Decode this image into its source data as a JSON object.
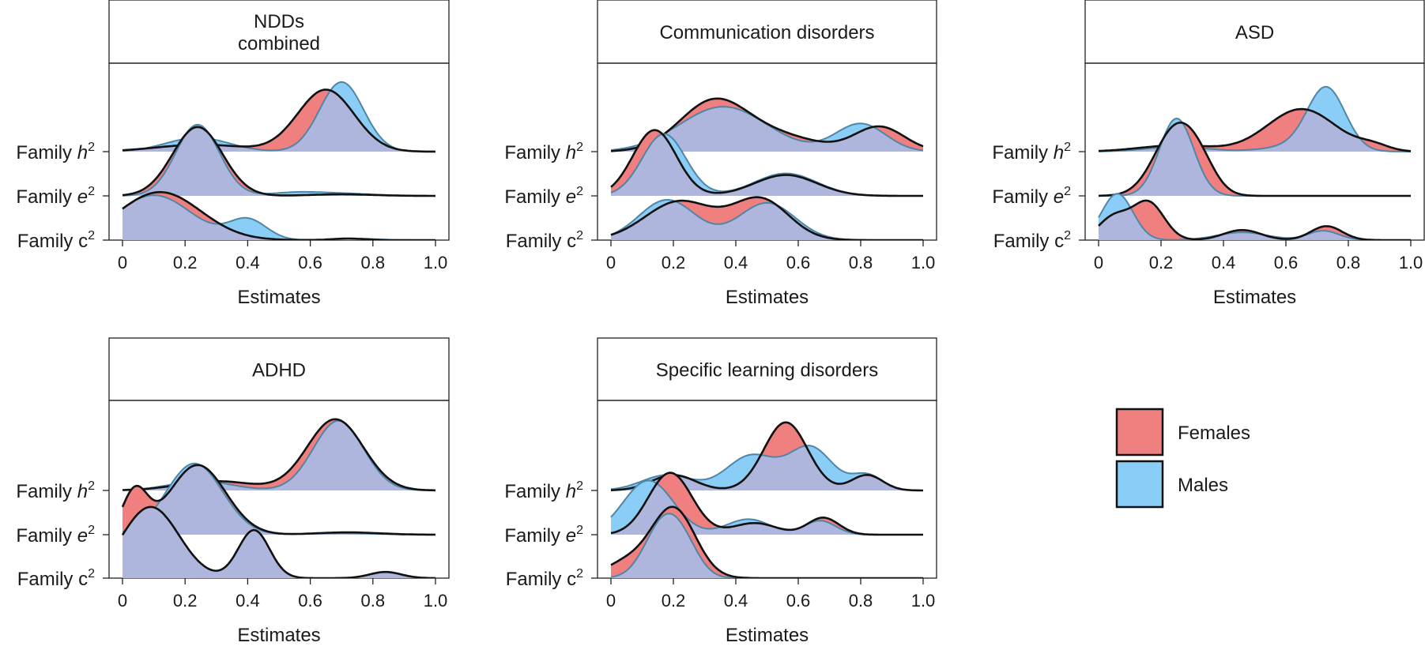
{
  "figure": {
    "row_labels": {
      "h2": {
        "prefix": "Family ",
        "symbol": "h",
        "sup": "2"
      },
      "e2": {
        "prefix": "Family ",
        "symbol": "e",
        "sup": "2"
      },
      "c2": {
        "prefix": "Family ",
        "symbol": "c",
        "sup": "2"
      }
    },
    "colors": {
      "females": "#f07f80",
      "males": "#8acdf7",
      "overlap": "#aeb6dd",
      "outline": "#111111",
      "male_line": "#4f86a6"
    }
  },
  "legend": {
    "items": [
      {
        "label": "Females",
        "color": "#f07f80"
      },
      {
        "label": "Males",
        "color": "#8acdf7"
      }
    ]
  },
  "chart_data": [
    {
      "type": "ridgeline-density",
      "title": [
        "NDDs",
        "combined"
      ],
      "xlabel": "Estimates",
      "xlim": [
        0,
        1
      ],
      "xticks": [
        0,
        0.2,
        0.4,
        0.6,
        0.8,
        1.0
      ],
      "xtick_labels": [
        "0",
        "0.2",
        "0.4",
        "0.6",
        "0.8",
        "1.0"
      ],
      "rows": [
        "Family h2",
        "Family e2",
        "Family c2"
      ],
      "series": [
        {
          "row": "h2",
          "name": "Females",
          "peaks": [
            [
              0.25,
              0.14,
              0.09
            ],
            [
              0.65,
              0.09,
              0.8
            ]
          ]
        },
        {
          "row": "h2",
          "name": "Males",
          "peaks": [
            [
              0.24,
              0.1,
              0.18
            ],
            [
              0.7,
              0.07,
              0.9
            ]
          ]
        },
        {
          "row": "e2",
          "name": "Females",
          "peaks": [
            [
              0.24,
              0.08,
              0.89
            ],
            [
              0.7,
              0.1,
              0.02
            ]
          ]
        },
        {
          "row": "e2",
          "name": "Males",
          "peaks": [
            [
              0.24,
              0.07,
              0.92
            ],
            [
              0.55,
              0.08,
              0.04
            ],
            [
              0.7,
              0.1,
              0.03
            ]
          ]
        },
        {
          "row": "c2",
          "name": "Females",
          "peaks": [
            [
              0.12,
              0.13,
              0.62
            ],
            [
              0.72,
              0.05,
              0.02
            ]
          ]
        },
        {
          "row": "c2",
          "name": "Males",
          "peaks": [
            [
              0.1,
              0.12,
              0.58
            ],
            [
              0.4,
              0.06,
              0.26
            ],
            [
              0.75,
              0.06,
              0.02
            ]
          ]
        }
      ]
    },
    {
      "type": "ridgeline-density",
      "title": [
        "Communication disorders"
      ],
      "xlabel": "Estimates",
      "xlim": [
        0,
        1
      ],
      "xticks": [
        0,
        0.2,
        0.4,
        0.6,
        0.8,
        1.0
      ],
      "xtick_labels": [
        "0",
        "0.2",
        "0.4",
        "0.6",
        "0.8",
        "1.0"
      ],
      "rows": [
        "Family h2",
        "Family e2",
        "Family c2"
      ],
      "series": [
        {
          "row": "h2",
          "name": "Females",
          "peaks": [
            [
              0.33,
              0.11,
              0.65
            ],
            [
              0.55,
              0.12,
              0.18
            ],
            [
              0.86,
              0.08,
              0.32
            ]
          ]
        },
        {
          "row": "h2",
          "name": "Males",
          "peaks": [
            [
              0.36,
              0.14,
              0.58
            ],
            [
              0.8,
              0.08,
              0.36
            ]
          ]
        },
        {
          "row": "e2",
          "name": "Females",
          "peaks": [
            [
              0.14,
              0.07,
              0.85
            ],
            [
              0.56,
              0.1,
              0.27
            ]
          ]
        },
        {
          "row": "e2",
          "name": "Males",
          "peaks": [
            [
              0.17,
              0.07,
              0.8
            ],
            [
              0.56,
              0.1,
              0.29
            ]
          ]
        },
        {
          "row": "c2",
          "name": "Females",
          "peaks": [
            [
              0.22,
              0.11,
              0.5
            ],
            [
              0.48,
              0.09,
              0.52
            ]
          ]
        },
        {
          "row": "c2",
          "name": "Males",
          "peaks": [
            [
              0.18,
              0.09,
              0.52
            ],
            [
              0.5,
              0.09,
              0.48
            ]
          ]
        }
      ]
    },
    {
      "type": "ridgeline-density",
      "title": [
        "ASD"
      ],
      "xlabel": "Estimates",
      "xlim": [
        0,
        1
      ],
      "xticks": [
        0,
        0.2,
        0.4,
        0.6,
        0.8,
        1.0
      ],
      "xtick_labels": [
        "0",
        "0.2",
        "0.4",
        "0.6",
        "0.8",
        "1.0"
      ],
      "rows": [
        "Family h2",
        "Family e2",
        "Family c2"
      ],
      "series": [
        {
          "row": "h2",
          "name": "Females",
          "peaks": [
            [
              0.25,
              0.12,
              0.08
            ],
            [
              0.65,
              0.11,
              0.55
            ],
            [
              0.88,
              0.05,
              0.07
            ]
          ]
        },
        {
          "row": "h2",
          "name": "Males",
          "peaks": [
            [
              0.25,
              0.1,
              0.06
            ],
            [
              0.73,
              0.06,
              0.78
            ],
            [
              0.65,
              0.1,
              0.08
            ]
          ]
        },
        {
          "row": "e2",
          "name": "Females",
          "peaks": [
            [
              0.25,
              0.07,
              0.88
            ],
            [
              0.33,
              0.05,
              0.2
            ]
          ]
        },
        {
          "row": "e2",
          "name": "Males",
          "peaks": [
            [
              0.25,
              0.055,
              1.0
            ]
          ]
        },
        {
          "row": "c2",
          "name": "Females",
          "peaks": [
            [
              0.05,
              0.05,
              0.3
            ],
            [
              0.16,
              0.05,
              0.48
            ],
            [
              0.46,
              0.06,
              0.13
            ],
            [
              0.73,
              0.05,
              0.18
            ]
          ]
        },
        {
          "row": "c2",
          "name": "Males",
          "peaks": [
            [
              0.06,
              0.05,
              0.6
            ],
            [
              0.46,
              0.08,
              0.1
            ],
            [
              0.72,
              0.05,
              0.12
            ]
          ]
        }
      ]
    },
    {
      "type": "ridgeline-density",
      "title": [
        "ADHD"
      ],
      "xlabel": "Estimates",
      "xlim": [
        0,
        1
      ],
      "xticks": [
        0,
        0.2,
        0.4,
        0.6,
        0.8,
        1.0
      ],
      "xtick_labels": [
        "0",
        "0.2",
        "0.4",
        "0.6",
        "0.8",
        "1.0"
      ],
      "rows": [
        "Family h2",
        "Family e2",
        "Family c2"
      ],
      "series": [
        {
          "row": "h2",
          "name": "Females",
          "peaks": [
            [
              0.3,
              0.12,
              0.12
            ],
            [
              0.68,
              0.09,
              0.92
            ]
          ]
        },
        {
          "row": "h2",
          "name": "Males",
          "peaks": [
            [
              0.25,
              0.1,
              0.12
            ],
            [
              0.69,
              0.08,
              0.9
            ]
          ]
        },
        {
          "row": "e2",
          "name": "Females",
          "peaks": [
            [
              0.04,
              0.04,
              0.55
            ],
            [
              0.24,
              0.09,
              0.9
            ],
            [
              0.72,
              0.1,
              0.03
            ]
          ]
        },
        {
          "row": "e2",
          "name": "Males",
          "peaks": [
            [
              0.23,
              0.09,
              0.92
            ],
            [
              0.7,
              0.1,
              0.02
            ]
          ]
        },
        {
          "row": "c2",
          "name": "Females",
          "peaks": [
            [
              0.09,
              0.09,
              0.92
            ],
            [
              0.42,
              0.05,
              0.62
            ],
            [
              0.84,
              0.05,
              0.08
            ]
          ]
        },
        {
          "row": "c2",
          "name": "Males",
          "peaks": [
            [
              0.09,
              0.09,
              0.92
            ],
            [
              0.42,
              0.05,
              0.62
            ],
            [
              0.84,
              0.05,
              0.08
            ]
          ]
        }
      ]
    },
    {
      "type": "ridgeline-density",
      "title": [
        "Specific learning disorders"
      ],
      "xlabel": "Estimates",
      "xlim": [
        0,
        1
      ],
      "xticks": [
        0,
        0.2,
        0.4,
        0.6,
        0.8,
        1.0
      ],
      "xtick_labels": [
        "0",
        "0.2",
        "0.4",
        "0.6",
        "0.8",
        "1.0"
      ],
      "rows": [
        "Family h2",
        "Family e2",
        "Family c2"
      ],
      "series": [
        {
          "row": "h2",
          "name": "Females",
          "peaks": [
            [
              0.2,
              0.07,
              0.2
            ],
            [
              0.56,
              0.07,
              0.88
            ],
            [
              0.82,
              0.05,
              0.2
            ]
          ]
        },
        {
          "row": "h2",
          "name": "Males",
          "peaks": [
            [
              0.18,
              0.08,
              0.2
            ],
            [
              0.45,
              0.08,
              0.45
            ],
            [
              0.64,
              0.07,
              0.55
            ],
            [
              0.82,
              0.05,
              0.2
            ]
          ]
        },
        {
          "row": "e2",
          "name": "Females",
          "peaks": [
            [
              0.19,
              0.07,
              0.8
            ],
            [
              0.46,
              0.07,
              0.15
            ],
            [
              0.68,
              0.05,
              0.22
            ]
          ]
        },
        {
          "row": "e2",
          "name": "Males",
          "peaks": [
            [
              0.12,
              0.08,
              0.7
            ],
            [
              0.44,
              0.07,
              0.2
            ],
            [
              0.67,
              0.05,
              0.18
            ]
          ]
        },
        {
          "row": "c2",
          "name": "Females",
          "peaks": [
            [
              0.05,
              0.07,
              0.2
            ],
            [
              0.2,
              0.07,
              0.9
            ]
          ]
        },
        {
          "row": "c2",
          "name": "Males",
          "peaks": [
            [
              0.17,
              0.06,
              0.72
            ],
            [
              0.24,
              0.05,
              0.25
            ]
          ]
        }
      ]
    }
  ]
}
